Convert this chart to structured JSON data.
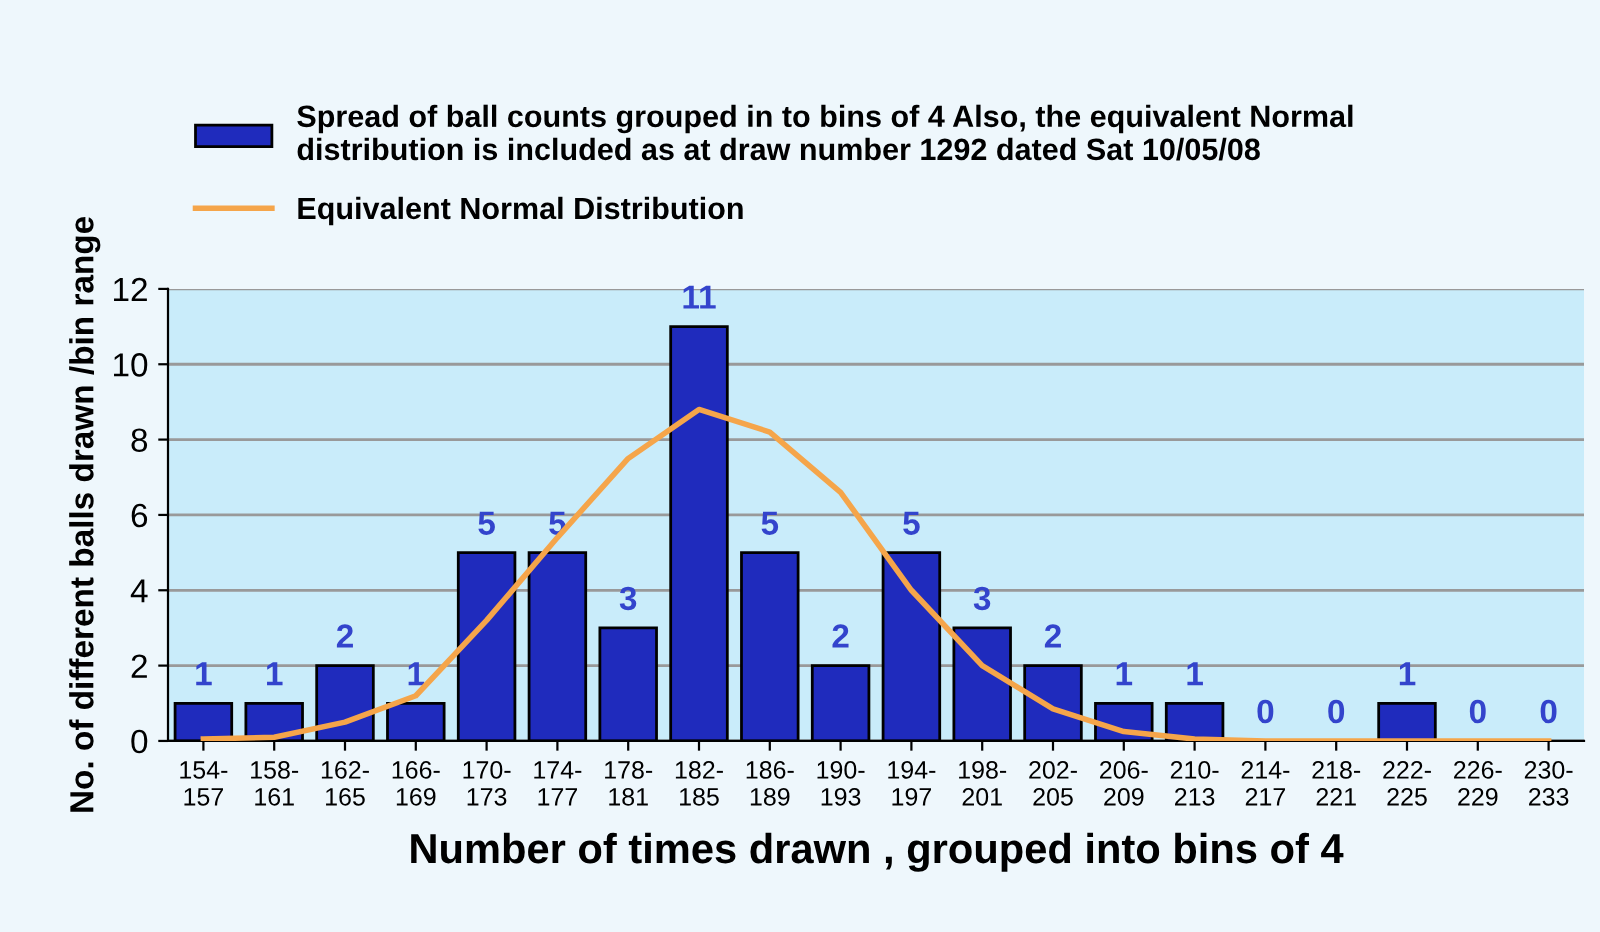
{
  "chart_data": {
    "type": "bar",
    "xlabel": "Number of times drawn , grouped into bins of 4",
    "ylabel": "No. of different balls drawn /bin range",
    "categories": [
      "154-\n157",
      "158-\n161",
      "162-\n165",
      "166-\n169",
      "170-\n173",
      "174-\n177",
      "178-\n181",
      "182-\n185",
      "186-\n189",
      "190-\n193",
      "194-\n197",
      "198-\n201",
      "202-\n205",
      "206-\n209",
      "210-\n213",
      "214-\n217",
      "218-\n221",
      "222-\n225",
      "226-\n229",
      "230-\n233"
    ],
    "series": [
      {
        "name": "Spread of ball counts grouped in to bins of 4 Also, the equivalent Normal\ndistribution is included as at draw number 1292 dated Sat 10/05/08",
        "color": "#1f2bbd",
        "values": [
          1,
          1,
          2,
          1,
          5,
          5,
          3,
          11,
          5,
          2,
          5,
          3,
          2,
          1,
          1,
          0,
          0,
          1,
          0,
          0
        ],
        "data_labels": true
      },
      {
        "name": "Equivalent Normal Distribution",
        "type": "line",
        "color": "#f5a54a",
        "values": [
          0.05,
          0.1,
          0.5,
          1.2,
          3.2,
          5.4,
          7.5,
          8.8,
          8.2,
          6.6,
          4.0,
          2.0,
          0.85,
          0.25,
          0.05,
          0,
          0,
          0,
          0,
          0
        ]
      }
    ],
    "ylim": [
      0,
      12
    ],
    "yticks": [
      0,
      2,
      4,
      6,
      8,
      10,
      12
    ],
    "grid": "y",
    "legend": "top"
  }
}
